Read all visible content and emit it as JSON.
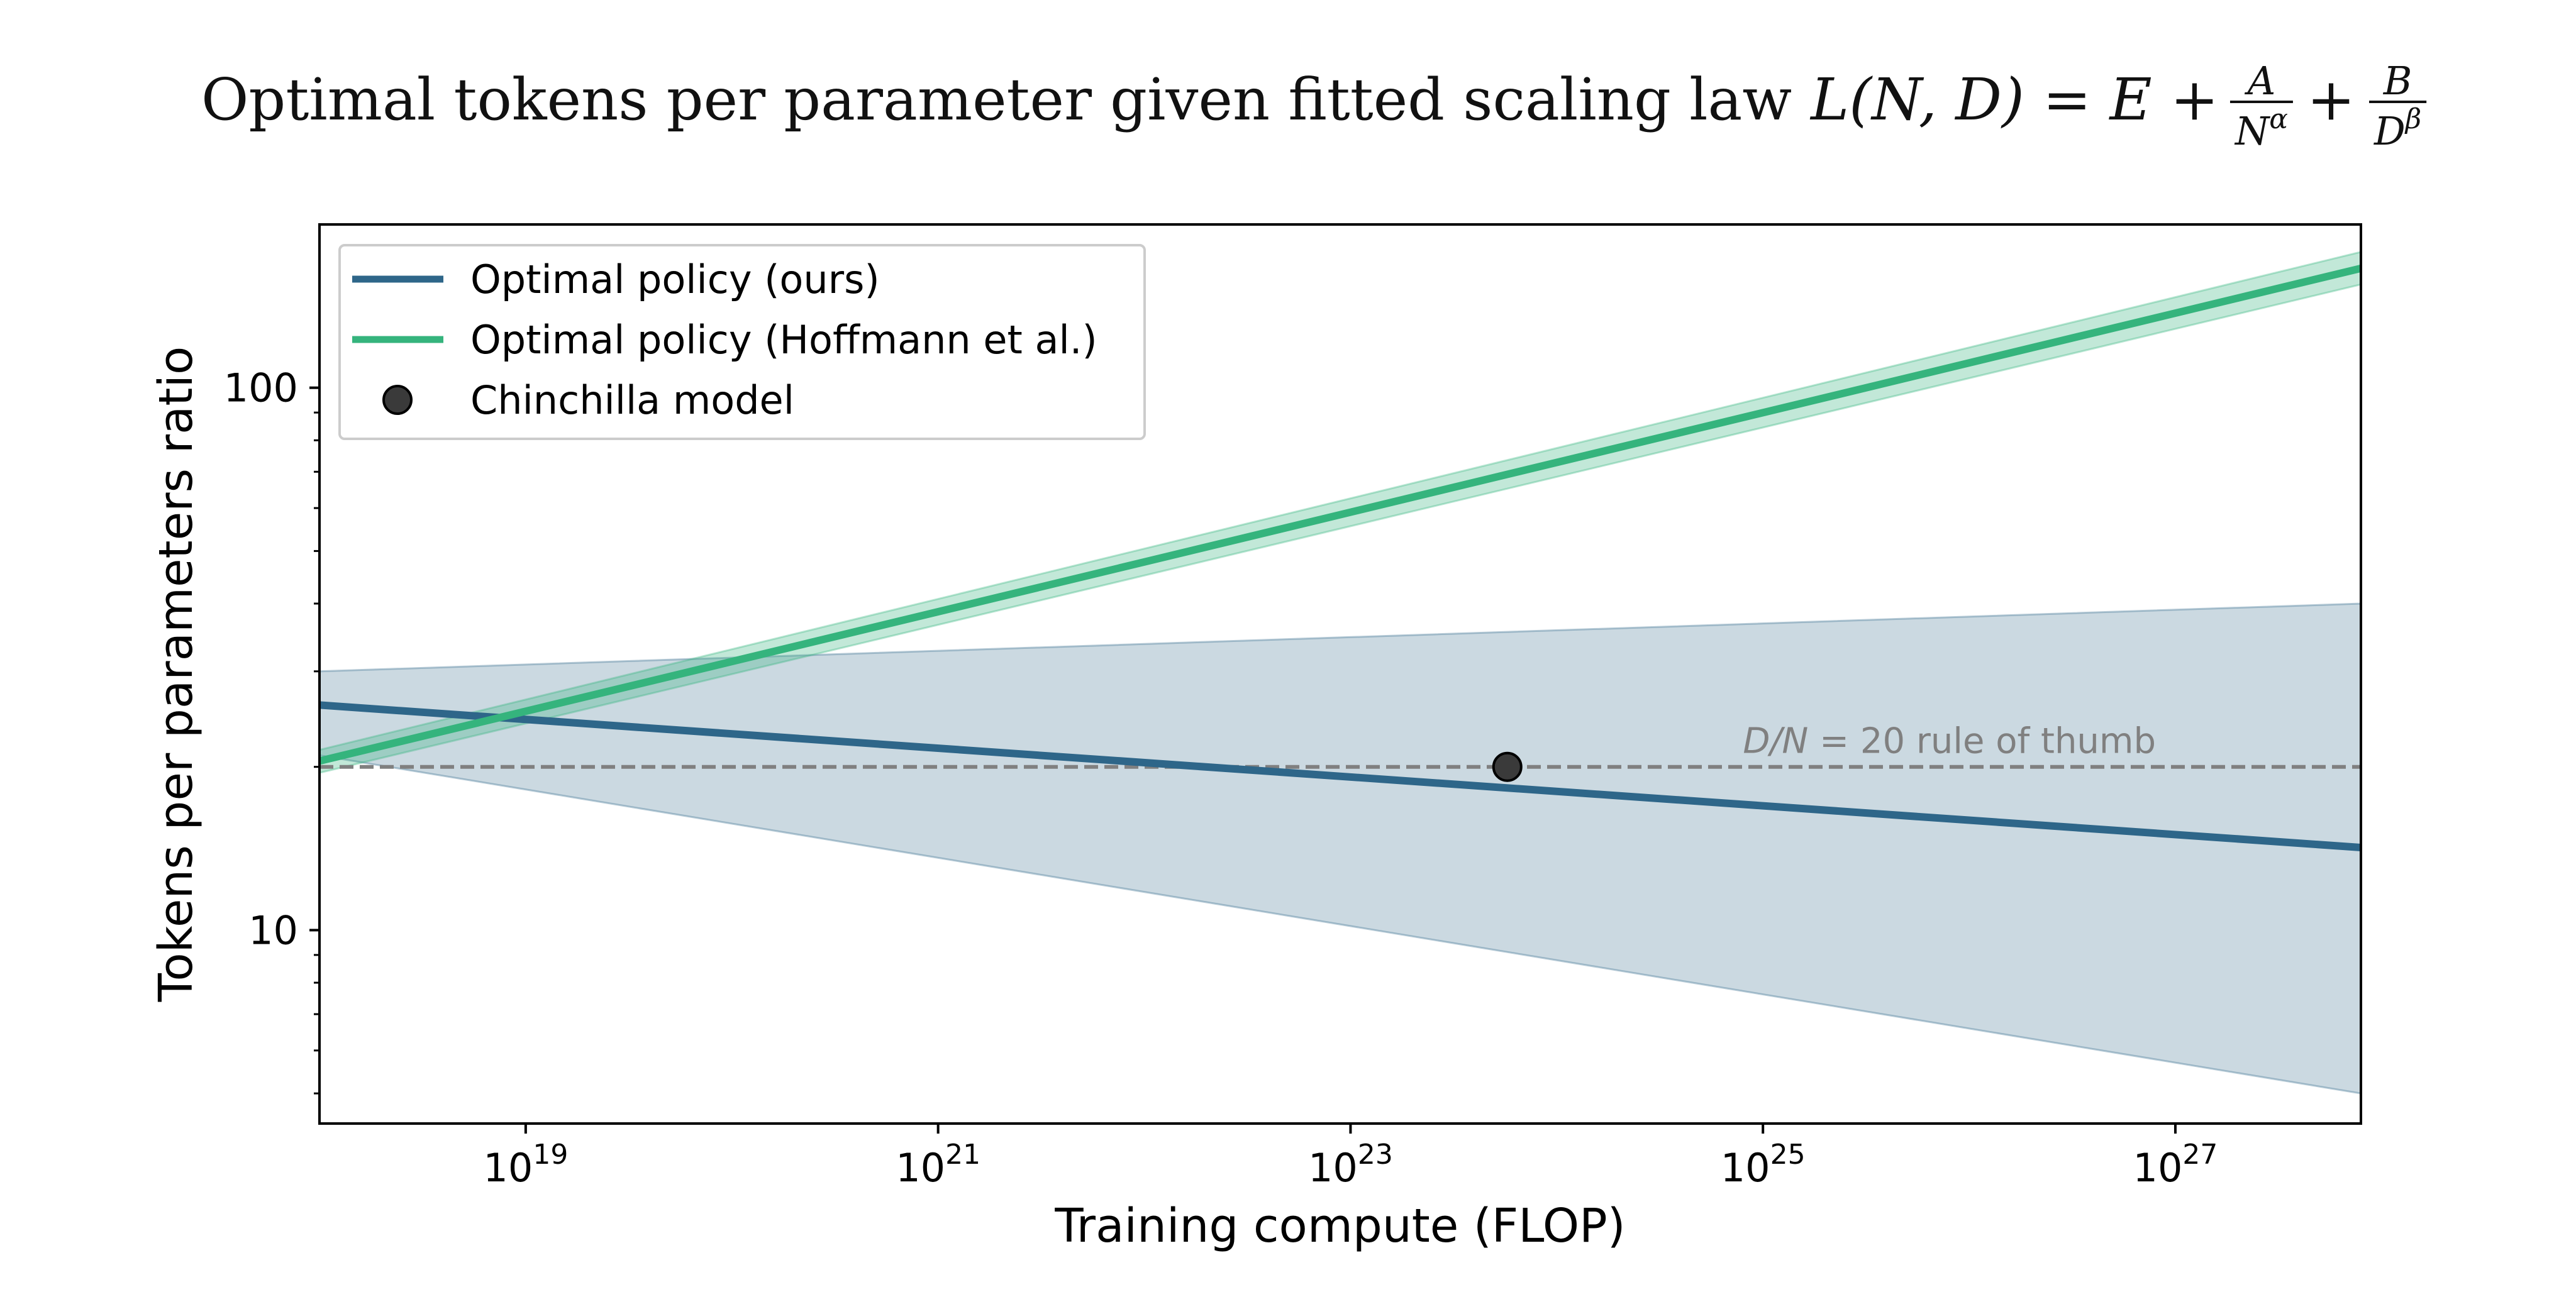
{
  "chart_data": {
    "type": "line",
    "title": {
      "prefix": "Optimal tokens per parameter given fitted scaling law",
      "formula_lhs": "L(N, D) = E +",
      "frac1_num": "A",
      "frac1_den_base": "N",
      "frac1_den_exp": "α",
      "plus": "+",
      "frac2_num": "B",
      "frac2_den_base": "D",
      "frac2_den_exp": "β"
    },
    "xlabel": "Training compute (FLOP)",
    "ylabel": "Tokens per parameters ratio",
    "xscale": "log",
    "yscale": "log",
    "xlim": [
      1e+18,
      7.94e+27
    ],
    "ylim": [
      4.4,
      200
    ],
    "grid": false,
    "legend_position": "top-left",
    "x_ticks": [
      {
        "value": 1e+19,
        "base": "10",
        "exp": "19"
      },
      {
        "value": 1e+21,
        "base": "10",
        "exp": "21"
      },
      {
        "value": 1e+23,
        "base": "10",
        "exp": "23"
      },
      {
        "value": 1e+25,
        "base": "10",
        "exp": "25"
      },
      {
        "value": 1e+27,
        "base": "10",
        "exp": "27"
      }
    ],
    "y_ticks": [
      {
        "value": 10,
        "label": "10"
      },
      {
        "value": 100,
        "label": "100"
      }
    ],
    "y_minor_ticks": [
      5,
      6,
      7,
      8,
      9,
      20,
      30,
      40,
      50,
      60,
      70,
      80,
      90
    ],
    "series": [
      {
        "name": "Optimal policy (ours)",
        "color": "#2e6689",
        "band_color": "#2e6689",
        "x": [
          1e+18,
          7.94e+27
        ],
        "y": [
          26.0,
          14.2
        ],
        "band_upper": [
          30.0,
          40.0
        ],
        "band_lower": [
          21.0,
          5.0
        ]
      },
      {
        "name": "Optimal policy (Hoffmann et al.)",
        "color": "#35b47d",
        "band_color": "#35b47d",
        "x": [
          1e+18,
          7.94e+27
        ],
        "y": [
          20.5,
          166.0
        ],
        "band_upper": [
          21.5,
          178.0
        ],
        "band_lower": [
          19.5,
          155.0
        ]
      }
    ],
    "points": [
      {
        "name": "Chinchilla model",
        "x": 5.76e+23,
        "y": 20,
        "color": "#3a3a3a"
      }
    ],
    "reference_line": {
      "y": 20,
      "color": "#808080",
      "label_italic": "D/N",
      "label_rest": " = 20 rule of thumb",
      "label_x": 8e+24
    }
  }
}
